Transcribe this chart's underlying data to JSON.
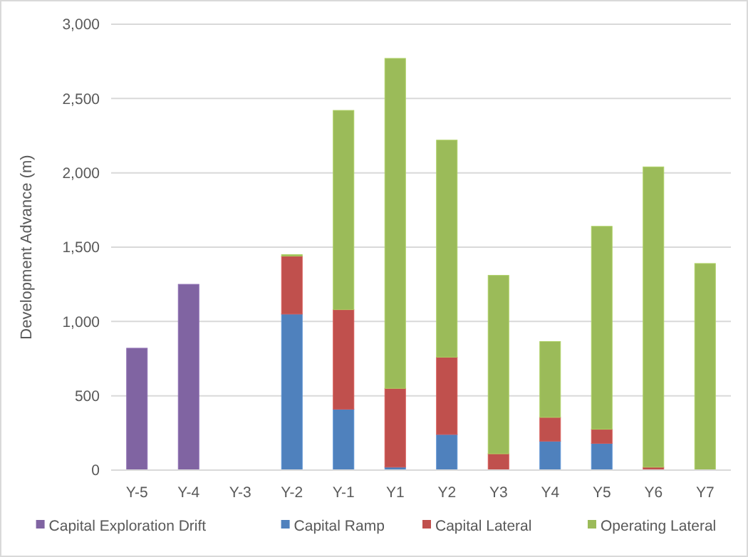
{
  "chart_data": {
    "type": "bar",
    "stacked": true,
    "ylabel": "Development Advance (m)",
    "categories": [
      "Y-5",
      "Y-4",
      "Y-3",
      "Y-2",
      "Y-1",
      "Y1",
      "Y2",
      "Y3",
      "Y4",
      "Y5",
      "Y6",
      "Y7"
    ],
    "series": [
      {
        "name": "Capital Exploration Drift",
        "color": "#8064a2",
        "values": [
          820,
          1250,
          0,
          0,
          0,
          0,
          0,
          0,
          0,
          0,
          0,
          0
        ]
      },
      {
        "name": "Capital Ramp",
        "color": "#4f81bd",
        "values": [
          0,
          0,
          0,
          1050,
          410,
          20,
          240,
          0,
          195,
          180,
          0,
          0
        ]
      },
      {
        "name": "Capital Lateral",
        "color": "#c0504d",
        "values": [
          0,
          0,
          0,
          390,
          670,
          530,
          520,
          110,
          160,
          95,
          20,
          0
        ]
      },
      {
        "name": "Operating Lateral",
        "color": "#9bbb59",
        "values": [
          0,
          0,
          0,
          10,
          1340,
          2220,
          1460,
          1200,
          510,
          1365,
          2020,
          1390
        ]
      }
    ],
    "ylim": [
      0,
      3000
    ],
    "yticks": [
      {
        "value": 0,
        "label": "0"
      },
      {
        "value": 500,
        "label": "500"
      },
      {
        "value": 1000,
        "label": "1,000"
      },
      {
        "value": 1500,
        "label": "1,500"
      },
      {
        "value": 2000,
        "label": "2,000"
      },
      {
        "value": 2500,
        "label": "2,500"
      },
      {
        "value": 3000,
        "label": "3,000"
      }
    ],
    "grid": "y",
    "legend": "bottom"
  }
}
